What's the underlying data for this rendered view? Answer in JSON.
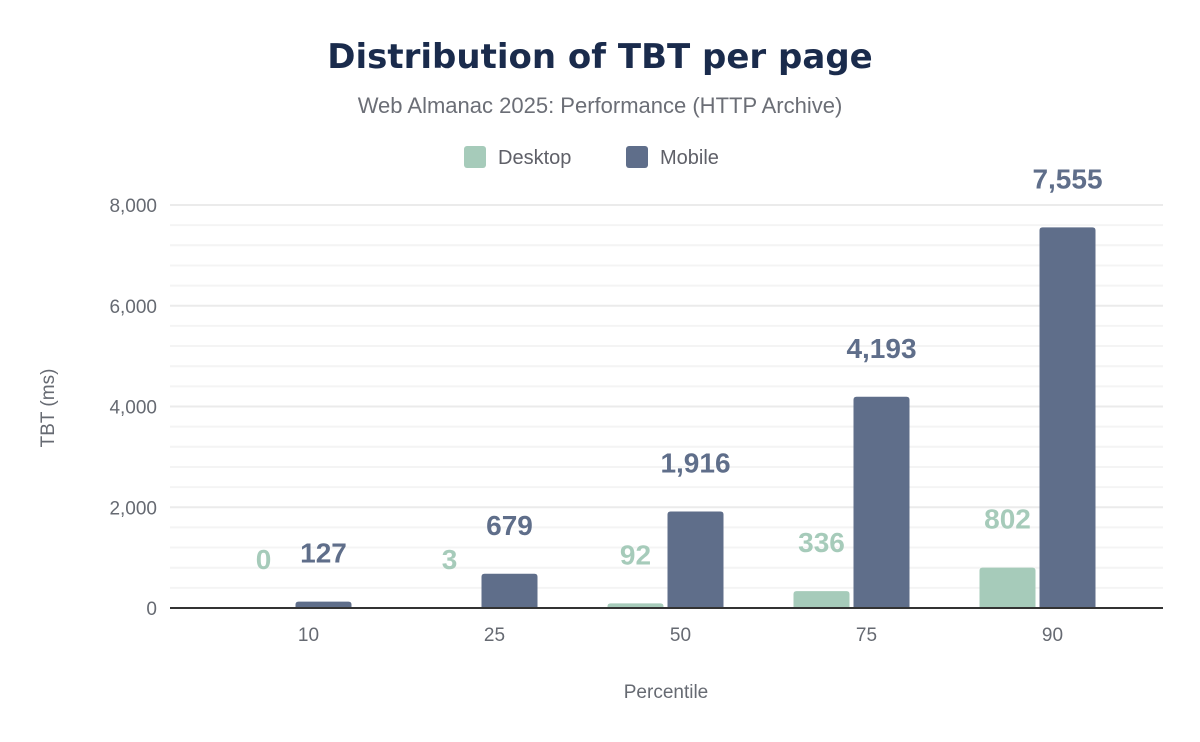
{
  "chart_data": {
    "type": "bar",
    "title": "Distribution of TBT per page",
    "subtitle": "Web Almanac 2025: Performance (HTTP Archive)",
    "xlabel": "Percentile",
    "ylabel": "TBT (ms)",
    "categories": [
      "10",
      "25",
      "50",
      "75",
      "90"
    ],
    "series": [
      {
        "name": "Desktop",
        "color": "#a6cbba",
        "values": [
          0,
          3,
          92,
          336,
          802
        ],
        "labels": [
          "0",
          "3",
          "92",
          "336",
          "802"
        ]
      },
      {
        "name": "Mobile",
        "color": "#5f6e8a",
        "values": [
          127,
          679,
          1916,
          4193,
          7555
        ],
        "labels": [
          "127",
          "679",
          "1,916",
          "4,193",
          "7,555"
        ]
      }
    ],
    "ylim": [
      0,
      8000
    ],
    "yticks": [
      0,
      2000,
      4000,
      6000,
      8000
    ],
    "ytick_labels": [
      "0",
      "2,000",
      "4,000",
      "6,000",
      "8,000"
    ],
    "grid": true,
    "legend": "top-center"
  }
}
